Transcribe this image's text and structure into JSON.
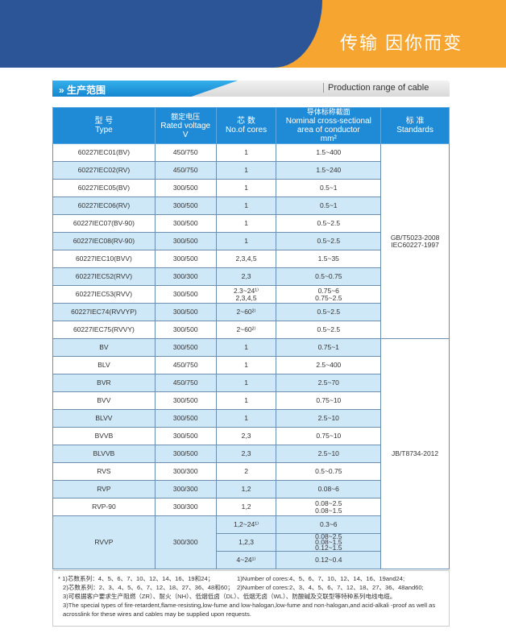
{
  "banner": {
    "slogan": "传输 因你而变",
    "colors": {
      "blue": "#2c5597",
      "orange": "#f6a530"
    }
  },
  "section": {
    "title_cn": "生产范围",
    "title_en": "Production range of cable"
  },
  "table": {
    "headers": [
      [
        "型 号",
        "Type"
      ],
      [
        "额定电压",
        "Rated voltage",
        "V"
      ],
      [
        "芯 数",
        "No.of cores"
      ],
      [
        "导体标称截面",
        "Nominal cross-sectional",
        "area of conductor",
        "mm²"
      ],
      [
        "标 准",
        "Standards"
      ]
    ],
    "standards": [
      "GB/T5023-2008\nIEC60227-1997",
      "JB/T8734-2012"
    ],
    "rows": [
      [
        "60227IEC01(BV)",
        "450/750",
        "1",
        "1.5~400"
      ],
      [
        "60227IEC02(RV)",
        "450/750",
        "1",
        "1.5~240"
      ],
      [
        "60227IEC05(BV)",
        "300/500",
        "1",
        "0.5~1"
      ],
      [
        "60227IEC06(RV)",
        "300/500",
        "1",
        "0.5~1"
      ],
      [
        "60227IEC07(BV-90)",
        "300/500",
        "1",
        "0.5~2.5"
      ],
      [
        "60227IEC08(RV-90)",
        "300/500",
        "1",
        "0.5~2.5"
      ],
      [
        "60227IEC10(BVV)",
        "300/500",
        "2,3,4,5",
        "1.5~35"
      ],
      [
        "60227IEC52(RVV)",
        "300/300",
        "2,3",
        "0.5~0.75"
      ],
      [
        "60227IEC53(RVV)",
        "300/500",
        "2.3~24¹⁾\n2,3,4,5",
        "0.75~6\n0.75~2.5"
      ],
      [
        "60227IEC74(RVVYP)",
        "300/500",
        "2~60²⁾",
        "0.5~2.5"
      ],
      [
        "60227IEC75(RVVY)",
        "300/500",
        "2~60²⁾",
        "0.5~2.5"
      ],
      [
        "BV",
        "300/500",
        "1",
        "0.75~1"
      ],
      [
        "BLV",
        "450/750",
        "1",
        "2.5~400"
      ],
      [
        "BVR",
        "450/750",
        "1",
        "2.5~70"
      ],
      [
        "BVV",
        "300/500",
        "1",
        "0.75~10"
      ],
      [
        "BLVV",
        "300/500",
        "1",
        "2.5~10"
      ],
      [
        "BVVB",
        "300/500",
        "2,3",
        "0.75~10"
      ],
      [
        "BLVVB",
        "300/500",
        "2,3",
        "2.5~10"
      ],
      [
        "RVS",
        "300/300",
        "2",
        "0.5~0.75"
      ],
      [
        "RVP",
        "300/300",
        "1,2",
        "0.08~6"
      ],
      [
        "RVP-90",
        "300/300",
        "1,2",
        "0.08~2.5\n0.08~1.5"
      ]
    ],
    "rvvp": {
      "type": "RVVP",
      "voltage": "300/300",
      "sub": [
        [
          "1,2~24¹⁾",
          "0.3~6"
        ],
        [
          "1,2,3",
          "0.08~2.5\n0.08~1.5\n0.12~1.5"
        ],
        [
          "4~24¹⁾",
          "0.12~0.4"
        ]
      ]
    }
  },
  "notes": {
    "n1_cn": "* 1)芯数系列：4、5、6、7、10、12、14、16、19和24；",
    "n1_en": "1)Number of cores:4、5、6、7、10、12、14、16、19and24;",
    "n2_cn": "2)芯数系列：2、3、4、5、6、7、12、18、27、36、48和60；",
    "n2_en": "2)Number of cores:2、3、4、5、6、7、12、18、27、36、48and60;",
    "n3_cn": "3)可根据客户要求生产阻燃（ZR）、耐火（NH）、低烟低卤（DL）、低烟无卤（WL）、防酸碱及交联型等特种系列电线电缆。",
    "n3_en": "3)The special types of fire-retardent,flame-resisting,low-fume and low-halogan,low-fume and non-halogan,and acid-alkali -proof as well as acrosslink for these wires and cables may be supplied upon requests."
  }
}
